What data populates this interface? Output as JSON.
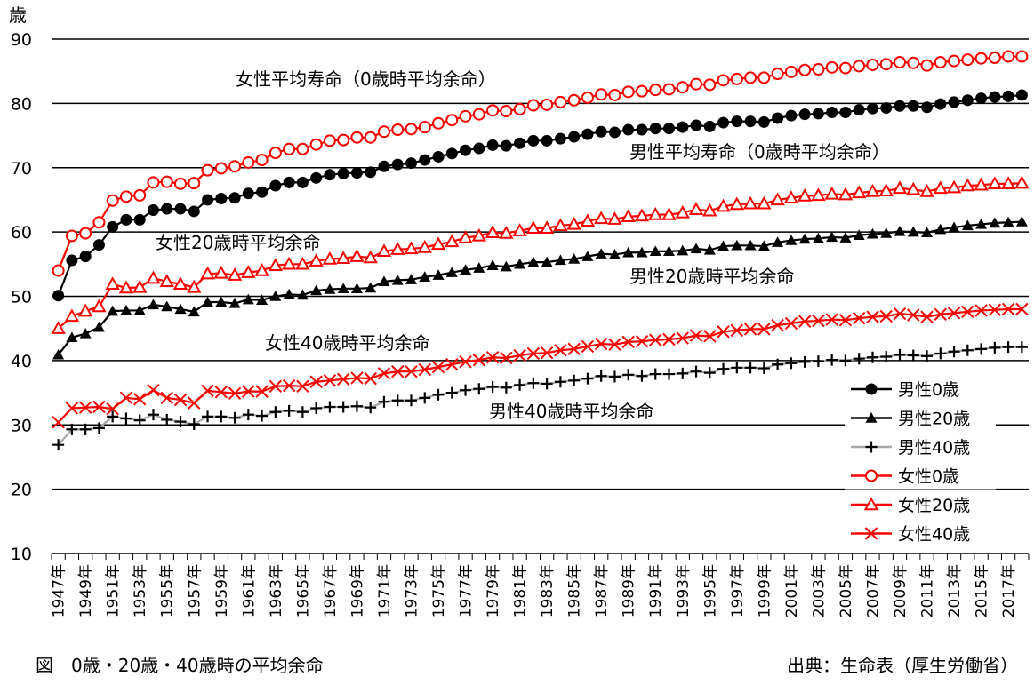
{
  "chart_data": {
    "type": "line",
    "title": "図　0歳・20歳・40歳時の平均余命",
    "source": "出典：生命表（厚生労働省）",
    "ylabel": "歳",
    "ylim": [
      10,
      90
    ],
    "yticks": [
      10,
      20,
      30,
      40,
      50,
      60,
      70,
      80,
      90
    ],
    "x_start": 1947,
    "x_end": 2018,
    "x_label_suffix": "年",
    "grid": true,
    "legend_position": "right",
    "series": [
      {
        "name": "男性0歳",
        "color": "#000000",
        "marker": "circle-filled",
        "values": [
          50.1,
          55.6,
          56.2,
          58.0,
          60.8,
          61.9,
          61.9,
          63.4,
          63.6,
          63.6,
          63.2,
          65.0,
          65.2,
          65.3,
          66.0,
          66.2,
          67.2,
          67.7,
          67.7,
          68.4,
          68.9,
          69.1,
          69.2,
          69.3,
          70.2,
          70.5,
          70.7,
          71.2,
          71.7,
          72.2,
          72.7,
          73.0,
          73.5,
          73.4,
          73.8,
          74.2,
          74.2,
          74.5,
          74.8,
          75.2,
          75.6,
          75.5,
          75.9,
          75.9,
          76.1,
          76.1,
          76.3,
          76.6,
          76.4,
          77.0,
          77.2,
          77.2,
          77.1,
          77.7,
          78.1,
          78.3,
          78.4,
          78.6,
          78.6,
          79.0,
          79.2,
          79.3,
          79.6,
          79.6,
          79.4,
          79.9,
          80.2,
          80.5,
          80.8,
          81.0,
          81.1,
          81.3
        ]
      },
      {
        "name": "男性20歳",
        "color": "#000000",
        "marker": "triangle-filled",
        "values": [
          40.9,
          43.6,
          44.2,
          45.2,
          47.7,
          47.8,
          47.8,
          48.7,
          48.4,
          48.0,
          47.6,
          49.1,
          49.1,
          48.9,
          49.5,
          49.4,
          50.0,
          50.3,
          50.2,
          50.9,
          51.1,
          51.2,
          51.2,
          51.3,
          52.3,
          52.5,
          52.6,
          53.0,
          53.3,
          53.7,
          54.1,
          54.4,
          54.8,
          54.6,
          55.0,
          55.3,
          55.3,
          55.6,
          55.8,
          56.2,
          56.6,
          56.5,
          56.8,
          56.8,
          57.0,
          57.0,
          57.1,
          57.4,
          57.2,
          57.8,
          57.9,
          57.9,
          57.8,
          58.4,
          58.7,
          58.9,
          59.0,
          59.2,
          59.1,
          59.5,
          59.7,
          59.8,
          60.1,
          60.0,
          59.9,
          60.4,
          60.7,
          61.0,
          61.2,
          61.4,
          61.5,
          61.6
        ]
      },
      {
        "name": "男性40歳",
        "color": "#a6a6a6",
        "marker": "plus",
        "values": [
          26.9,
          29.3,
          29.3,
          29.5,
          31.3,
          31.0,
          30.7,
          31.6,
          30.8,
          30.5,
          30.1,
          31.3,
          31.3,
          31.1,
          31.6,
          31.4,
          32.0,
          32.2,
          32.0,
          32.6,
          32.8,
          32.8,
          32.9,
          32.7,
          33.6,
          33.8,
          33.8,
          34.2,
          34.7,
          35.0,
          35.4,
          35.6,
          35.9,
          35.8,
          36.2,
          36.5,
          36.4,
          36.7,
          36.9,
          37.2,
          37.6,
          37.5,
          37.8,
          37.6,
          37.9,
          37.9,
          38.0,
          38.3,
          38.1,
          38.7,
          38.9,
          38.9,
          38.8,
          39.4,
          39.6,
          39.8,
          39.9,
          40.1,
          40.0,
          40.3,
          40.5,
          40.6,
          40.9,
          40.8,
          40.7,
          41.1,
          41.4,
          41.6,
          41.8,
          42.0,
          42.1,
          42.1
        ]
      },
      {
        "name": "女性0歳",
        "color": "#ff0000",
        "marker": "circle-open",
        "values": [
          54.0,
          59.4,
          59.8,
          61.5,
          64.9,
          65.5,
          65.7,
          67.7,
          67.8,
          67.5,
          67.6,
          69.6,
          69.9,
          70.2,
          70.8,
          71.2,
          72.3,
          72.9,
          72.9,
          73.6,
          74.2,
          74.3,
          74.7,
          74.7,
          75.6,
          75.9,
          76.0,
          76.3,
          76.9,
          77.4,
          78.0,
          78.3,
          78.9,
          78.8,
          79.1,
          79.7,
          79.8,
          80.2,
          80.5,
          80.9,
          81.4,
          81.3,
          81.8,
          81.9,
          82.1,
          82.2,
          82.5,
          83.0,
          82.9,
          83.6,
          83.8,
          84.0,
          84.0,
          84.6,
          84.9,
          85.2,
          85.3,
          85.6,
          85.5,
          85.8,
          86.0,
          86.1,
          86.4,
          86.3,
          85.9,
          86.4,
          86.6,
          86.8,
          87.0,
          87.1,
          87.3,
          87.3
        ]
      },
      {
        "name": "女性20歳",
        "color": "#ff0000",
        "marker": "triangle-open",
        "values": [
          45.0,
          46.9,
          47.7,
          48.4,
          51.9,
          51.3,
          51.4,
          52.8,
          52.3,
          51.9,
          51.4,
          53.5,
          53.6,
          53.3,
          53.7,
          54.0,
          54.8,
          55.0,
          55.0,
          55.5,
          55.8,
          55.9,
          56.2,
          56.0,
          57.0,
          57.3,
          57.4,
          57.6,
          58.1,
          58.5,
          59.1,
          59.4,
          59.9,
          59.8,
          60.2,
          60.6,
          60.6,
          61.0,
          61.2,
          61.7,
          62.1,
          62.0,
          62.4,
          62.5,
          62.7,
          62.7,
          63.0,
          63.5,
          63.3,
          64.0,
          64.3,
          64.4,
          64.4,
          65.0,
          65.3,
          65.6,
          65.7,
          65.9,
          65.8,
          66.1,
          66.3,
          66.4,
          66.8,
          66.6,
          66.3,
          66.8,
          66.9,
          67.2,
          67.3,
          67.5,
          67.5,
          67.6
        ]
      },
      {
        "name": "女性40歳",
        "color": "#ff0000",
        "marker": "x",
        "values": [
          30.4,
          32.6,
          32.7,
          32.8,
          32.5,
          34.2,
          34.0,
          35.4,
          34.2,
          33.9,
          33.4,
          35.3,
          35.1,
          34.9,
          35.2,
          35.2,
          36.0,
          36.1,
          36.0,
          36.7,
          36.9,
          37.1,
          37.3,
          37.2,
          38.0,
          38.3,
          38.3,
          38.6,
          39.0,
          39.4,
          39.8,
          40.1,
          40.5,
          40.4,
          40.8,
          41.1,
          41.2,
          41.6,
          41.8,
          42.2,
          42.6,
          42.5,
          42.9,
          43.0,
          43.2,
          43.3,
          43.5,
          43.9,
          43.8,
          44.5,
          44.7,
          44.9,
          44.9,
          45.5,
          45.8,
          46.1,
          46.2,
          46.4,
          46.3,
          46.6,
          46.8,
          46.9,
          47.3,
          47.1,
          46.8,
          47.2,
          47.4,
          47.6,
          47.8,
          47.9,
          48.0,
          48.0
        ]
      }
    ],
    "annotations": [
      {
        "text": "女性平均寿命（0歳時平均余命）",
        "series": "女性0歳"
      },
      {
        "text": "男性平均寿命（0歳時平均余命）",
        "series": "男性0歳"
      },
      {
        "text": "女性20歳時平均余命",
        "series": "女性20歳"
      },
      {
        "text": "男性20歳時平均余命",
        "series": "男性20歳"
      },
      {
        "text": "女性40歳時平均余命",
        "series": "女性40歳"
      },
      {
        "text": "男性40歳時平均余命",
        "series": "男性40歳"
      }
    ]
  }
}
